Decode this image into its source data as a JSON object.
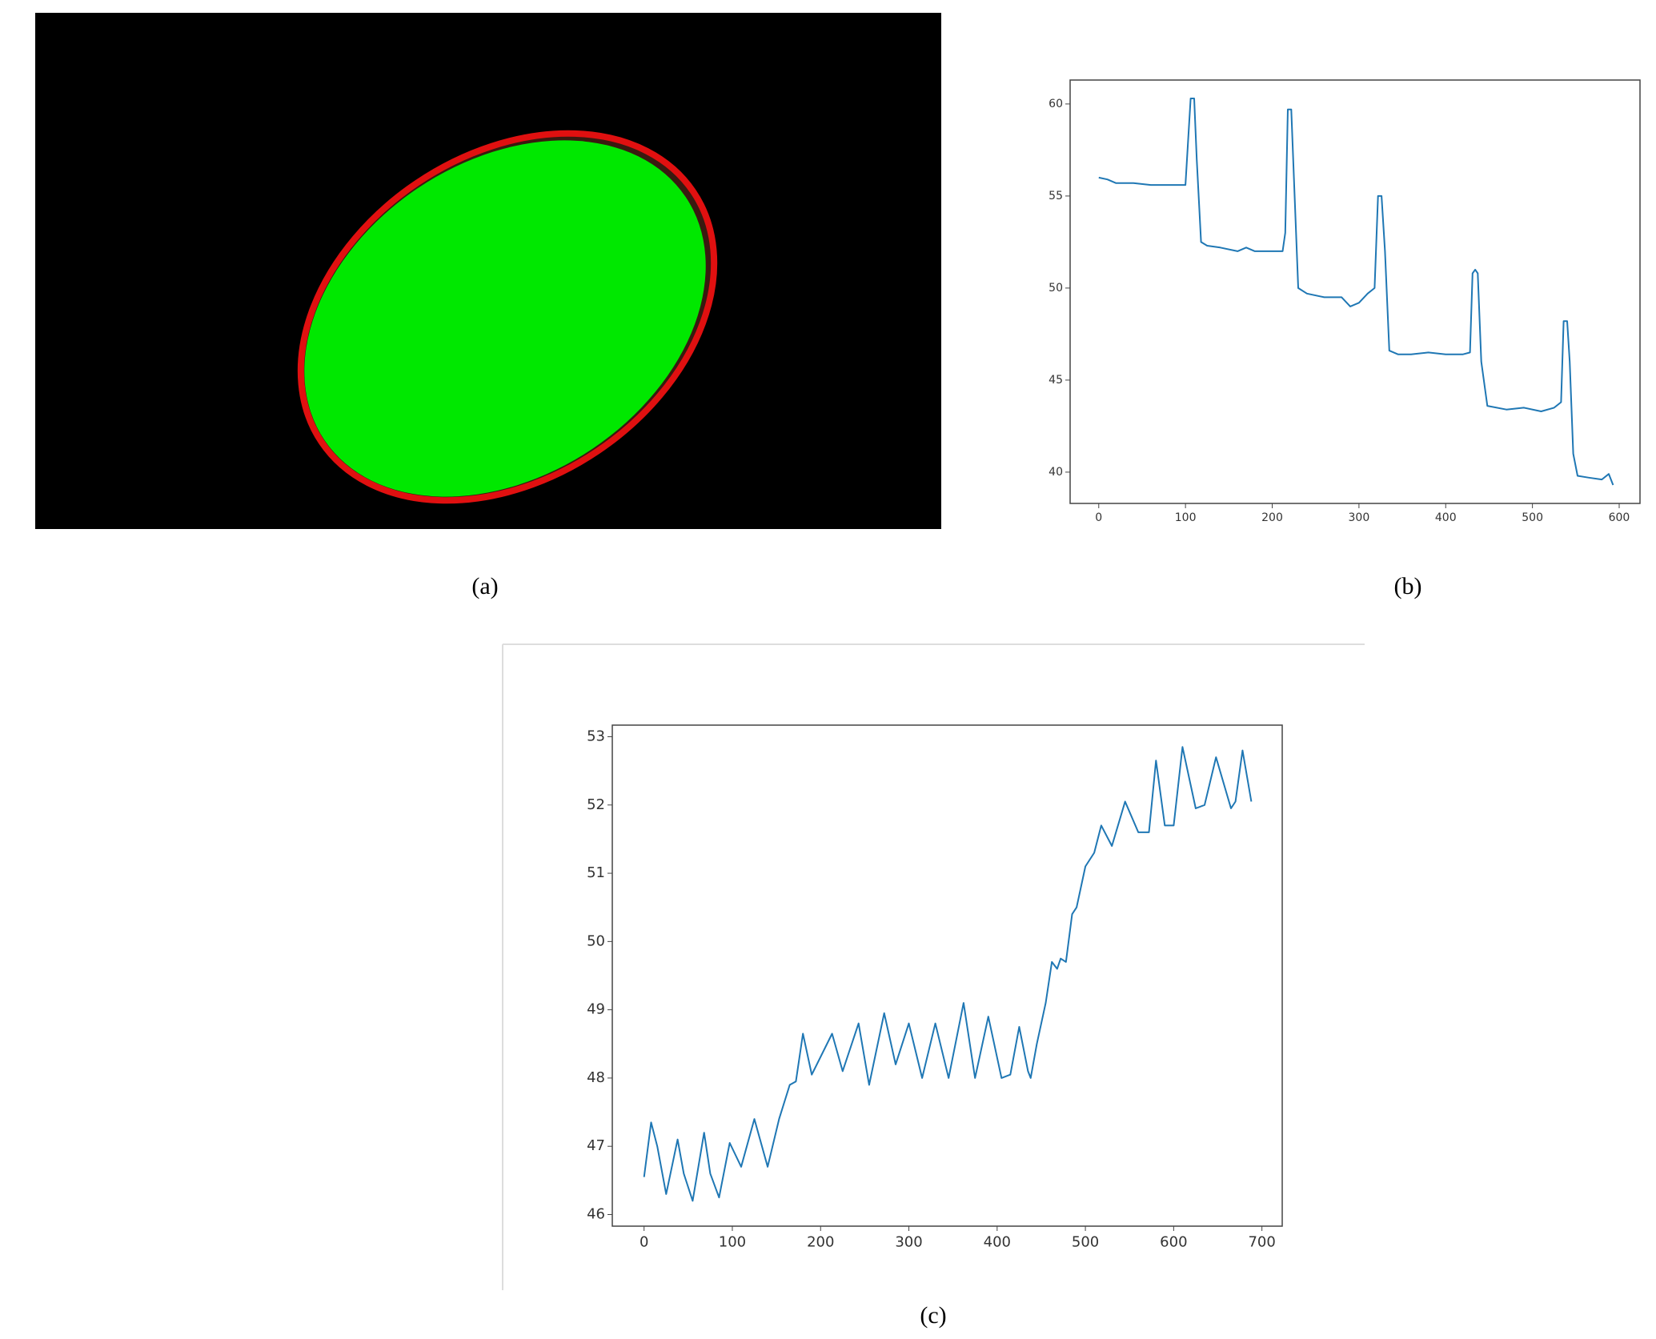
{
  "image": {
    "caption": "(a)"
  },
  "chart_data": [
    {
      "type": "line",
      "caption": "(b)",
      "x": [
        0,
        10,
        20,
        40,
        60,
        80,
        100,
        103,
        106,
        110,
        113,
        118,
        125,
        140,
        160,
        170,
        180,
        200,
        212,
        215,
        218,
        222,
        225,
        230,
        240,
        260,
        280,
        290,
        300,
        310,
        318,
        322,
        326,
        330,
        335,
        345,
        360,
        380,
        400,
        420,
        428,
        431,
        434,
        437,
        441,
        448,
        470,
        490,
        510,
        525,
        533,
        536,
        540,
        543,
        547,
        552,
        565,
        580,
        588,
        593
      ],
      "series": [
        {
          "color": "#1f77b4",
          "values": [
            56,
            55.9,
            55.7,
            55.7,
            55.6,
            55.6,
            55.6,
            58,
            60.3,
            60.3,
            57,
            52.5,
            52.3,
            52.2,
            52,
            52.2,
            52,
            52,
            52,
            53,
            59.7,
            59.7,
            56,
            50,
            49.7,
            49.5,
            49.5,
            49,
            49.2,
            49.7,
            50,
            55,
            55,
            52,
            46.6,
            46.4,
            46.4,
            46.5,
            46.4,
            46.4,
            46.5,
            50.8,
            51,
            50.8,
            46,
            43.6,
            43.4,
            43.5,
            43.3,
            43.5,
            43.8,
            48.2,
            48.2,
            46,
            41,
            39.8,
            39.7,
            39.6,
            39.9,
            39.3
          ]
        }
      ],
      "xlim": [
        -33,
        624
      ],
      "ylim": [
        38.3,
        61.3
      ],
      "xticks": [
        0,
        100,
        200,
        300,
        400,
        500,
        600
      ],
      "yticks": [
        40,
        45,
        50,
        55,
        60
      ]
    },
    {
      "type": "line",
      "caption": "(c)",
      "x": [
        0,
        8,
        15,
        25,
        38,
        45,
        55,
        68,
        75,
        85,
        97,
        110,
        125,
        140,
        153,
        165,
        172,
        180,
        190,
        213,
        225,
        243,
        255,
        272,
        285,
        300,
        315,
        330,
        345,
        362,
        375,
        390,
        405,
        415,
        425,
        435,
        438,
        445,
        455,
        462,
        468,
        472,
        478,
        485,
        490,
        500,
        510,
        518,
        530,
        545,
        560,
        572,
        580,
        590,
        600,
        610,
        625,
        635,
        648,
        665,
        670,
        678,
        688
      ],
      "series": [
        {
          "color": "#1f77b4",
          "values": [
            46.55,
            47.35,
            47.0,
            46.3,
            47.1,
            46.6,
            46.2,
            47.2,
            46.6,
            46.25,
            47.05,
            46.7,
            47.4,
            46.7,
            47.4,
            47.9,
            47.95,
            48.65,
            48.05,
            48.65,
            48.1,
            48.8,
            47.9,
            48.95,
            48.2,
            48.8,
            48,
            48.8,
            48,
            49.1,
            48,
            48.9,
            48,
            48.05,
            48.75,
            48.1,
            48,
            48.5,
            49.1,
            49.7,
            49.6,
            49.75,
            49.7,
            50.4,
            50.5,
            51.1,
            51.3,
            51.7,
            51.4,
            52.05,
            51.6,
            51.6,
            52.65,
            51.7,
            51.7,
            52.85,
            51.95,
            52.0,
            52.7,
            51.95,
            52.05,
            52.8,
            52.05
          ]
        }
      ],
      "xlim": [
        -36,
        723
      ],
      "ylim": [
        45.83,
        53.17
      ],
      "xticks": [
        0,
        100,
        200,
        300,
        400,
        500,
        600,
        700
      ],
      "yticks": [
        46,
        47,
        48,
        49,
        50,
        51,
        52,
        53
      ]
    }
  ]
}
